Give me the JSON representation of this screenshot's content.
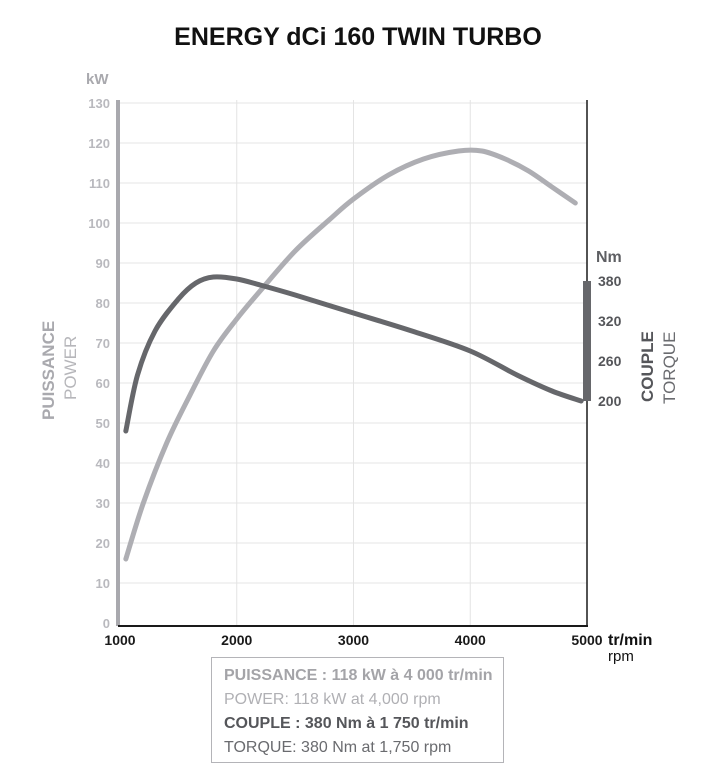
{
  "title": "ENERGY dCi 160 TWIN TURBO",
  "colors": {
    "power": "#aeaeb3",
    "torque": "#66676b",
    "grid": "#e4e4e4",
    "axis": "#1a1a1a"
  },
  "chart_data": {
    "type": "line",
    "title": "ENERGY dCi 160 TWIN TURBO",
    "x": {
      "unit_fr": "tr/min",
      "unit_en": "rpm",
      "range": [
        1000,
        5000
      ],
      "ticks": [
        1000,
        2000,
        3000,
        4000,
        5000
      ]
    },
    "y_left": {
      "unit": "kW",
      "label_fr": "PUISSANCE",
      "label_en": "POWER",
      "range": [
        0,
        130
      ],
      "ticks": [
        0,
        10,
        20,
        30,
        40,
        50,
        60,
        70,
        80,
        90,
        100,
        110,
        120,
        130
      ]
    },
    "y_right": {
      "unit": "Nm",
      "label_fr": "COUPLE",
      "label_en": "TORQUE",
      "ticks": [
        200,
        260,
        320,
        380
      ]
    },
    "series": [
      {
        "name": "POWER",
        "axis": "left",
        "points": [
          [
            1050,
            16
          ],
          [
            1200,
            30
          ],
          [
            1400,
            45
          ],
          [
            1600,
            57
          ],
          [
            1800,
            68
          ],
          [
            2000,
            76
          ],
          [
            2200,
            83
          ],
          [
            2500,
            93
          ],
          [
            2800,
            101
          ],
          [
            3000,
            106
          ],
          [
            3300,
            112
          ],
          [
            3600,
            116
          ],
          [
            3900,
            118
          ],
          [
            4100,
            118
          ],
          [
            4300,
            116
          ],
          [
            4500,
            113
          ],
          [
            4700,
            109
          ],
          [
            4900,
            105
          ]
        ]
      },
      {
        "name": "TORQUE",
        "axis": "left-equivalent",
        "points": [
          [
            1050,
            48
          ],
          [
            1150,
            62
          ],
          [
            1300,
            73
          ],
          [
            1500,
            81
          ],
          [
            1650,
            85
          ],
          [
            1800,
            86.5
          ],
          [
            2000,
            86
          ],
          [
            2200,
            84.5
          ],
          [
            2500,
            82
          ],
          [
            3000,
            77.5
          ],
          [
            3500,
            73
          ],
          [
            4000,
            68
          ],
          [
            4400,
            62
          ],
          [
            4700,
            58
          ],
          [
            4950,
            55.5
          ]
        ]
      }
    ]
  },
  "info": {
    "power_fr": "PUISSANCE : 118 kW à 4 000 tr/min",
    "power_en": "POWER: 118 kW at 4,000 rpm",
    "torque_fr": "COUPLE : 380 Nm à 1 750 tr/min",
    "torque_en": "TORQUE: 380 Nm at 1,750 rpm"
  }
}
